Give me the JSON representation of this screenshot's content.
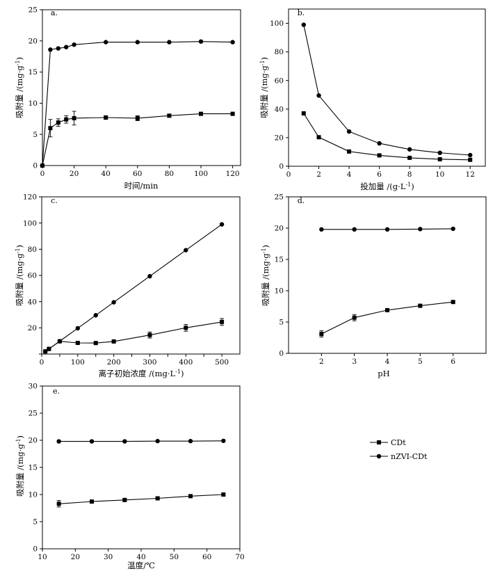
{
  "figure": {
    "series_names": [
      "CDt",
      "nZVI-CDt"
    ],
    "markers": [
      "square",
      "circle"
    ]
  },
  "legend": {
    "entries": [
      {
        "label": "CDt",
        "marker": "square"
      },
      {
        "label": "nZVI-CDt",
        "marker": "circle"
      }
    ]
  },
  "chart_data": [
    {
      "id": "a",
      "panel_label": "a.",
      "type": "line",
      "xlabel": "时间/min",
      "ylabel_main": "吸附量 /(mg·g",
      "ylabel_sup": "-1",
      "ylabel_tail": ")",
      "xlim": [
        0,
        125
      ],
      "ylim": [
        0,
        25
      ],
      "xticks": [
        0,
        20,
        40,
        60,
        80,
        100,
        120
      ],
      "yticks": [
        0,
        5,
        10,
        15,
        20,
        25
      ],
      "series": [
        {
          "name": "CDt",
          "marker": "square",
          "x": [
            0,
            5,
            10,
            15,
            20,
            40,
            60,
            80,
            100,
            120
          ],
          "y": [
            0,
            6.0,
            6.9,
            7.4,
            7.6,
            7.7,
            7.6,
            8.0,
            8.3,
            8.3
          ],
          "err": [
            0,
            1.4,
            0.6,
            0.6,
            1.1,
            0.3,
            0.4,
            0.2,
            0.2,
            0.2
          ]
        },
        {
          "name": "nZVI-CDt",
          "marker": "circle",
          "x": [
            0,
            5,
            10,
            15,
            20,
            40,
            60,
            80,
            100,
            120
          ],
          "y": [
            0,
            18.6,
            18.8,
            19.0,
            19.4,
            19.8,
            19.8,
            19.8,
            19.9,
            19.8
          ]
        }
      ]
    },
    {
      "id": "b",
      "panel_label": "b.",
      "type": "line",
      "xlabel": "投加量 /(g·L",
      "xlabel_sup": "-1",
      "xlabel_tail": ")",
      "ylabel_main": "吸附量 /(mg·g",
      "ylabel_sup": "-1",
      "ylabel_tail": ")",
      "xlim": [
        0,
        13
      ],
      "ylim": [
        0,
        110
      ],
      "xticks": [
        0,
        2,
        4,
        6,
        8,
        10,
        12
      ],
      "yticks": [
        0,
        20,
        40,
        60,
        80,
        100
      ],
      "series": [
        {
          "name": "CDt",
          "marker": "square",
          "x": [
            1,
            2,
            4,
            6,
            8,
            10,
            12
          ],
          "y": [
            37,
            20.3,
            10.3,
            7.6,
            5.9,
            4.9,
            4.5
          ]
        },
        {
          "name": "nZVI-CDt",
          "marker": "circle",
          "x": [
            1,
            2,
            4,
            6,
            8,
            10,
            12
          ],
          "y": [
            99,
            49.5,
            24.3,
            16.0,
            11.8,
            9.4,
            7.8
          ]
        }
      ]
    },
    {
      "id": "c",
      "panel_label": "c.",
      "type": "line",
      "xlabel": "离子初始浓度 /(mg·L",
      "xlabel_sup": "-1",
      "xlabel_tail": ")",
      "ylabel_main": "吸附量 /(mg·g",
      "ylabel_sup": "-1",
      "ylabel_tail": ")",
      "xlim": [
        0,
        550
      ],
      "ylim": [
        0,
        120
      ],
      "xticks": [
        0,
        50,
        100,
        150,
        200,
        250,
        300,
        350,
        400,
        450,
        500
      ],
      "xtick_labels": [
        "0",
        "",
        "100",
        "",
        "200",
        "",
        "300",
        "",
        "400",
        "",
        "500"
      ],
      "yticks": [
        0,
        20,
        40,
        60,
        80,
        100,
        120
      ],
      "ytick_labels": [
        "",
        "20",
        "40",
        "60",
        "80",
        "100",
        "120"
      ],
      "series": [
        {
          "name": "CDt",
          "marker": "square",
          "x": [
            10,
            20,
            50,
            100,
            150,
            200,
            300,
            400,
            500
          ],
          "y": [
            2.0,
            3.9,
            9.7,
            8.5,
            8.4,
            9.6,
            14.5,
            20.0,
            24.5
          ],
          "err": [
            0,
            0,
            0.4,
            0.6,
            0.6,
            0.5,
            2.3,
            2.6,
            2.6
          ]
        },
        {
          "name": "nZVI-CDt",
          "marker": "circle",
          "x": [
            10,
            20,
            50,
            100,
            150,
            200,
            300,
            400,
            500
          ],
          "y": [
            2.0,
            3.9,
            9.8,
            19.7,
            29.6,
            39.5,
            59.4,
            79.3,
            99.0
          ]
        }
      ]
    },
    {
      "id": "d",
      "panel_label": "d.",
      "type": "line",
      "xlabel": "pH",
      "ylabel_main": "吸附量 /(mg·g",
      "ylabel_sup": "-1",
      "ylabel_tail": ")",
      "xlim": [
        1,
        7
      ],
      "ylim": [
        0,
        25
      ],
      "xticks": [
        2,
        3,
        4,
        5,
        6
      ],
      "yticks": [
        0,
        5,
        10,
        15,
        20,
        25
      ],
      "series": [
        {
          "name": "CDt",
          "marker": "square",
          "x": [
            2,
            3,
            4,
            5,
            6
          ],
          "y": [
            3.1,
            5.7,
            6.9,
            7.6,
            8.2
          ],
          "err": [
            0.5,
            0.5,
            0.2,
            0.2,
            0.1
          ]
        },
        {
          "name": "nZVI-CDt",
          "marker": "circle",
          "x": [
            2,
            3,
            4,
            5,
            6
          ],
          "y": [
            19.8,
            19.8,
            19.8,
            19.85,
            19.9
          ]
        }
      ]
    },
    {
      "id": "e",
      "panel_label": "e.",
      "type": "line",
      "xlabel": "温度/℃",
      "ylabel_main": "吸附量 /(mg·g",
      "ylabel_sup": "-1",
      "ylabel_tail": ")",
      "xlim": [
        10,
        70
      ],
      "ylim": [
        0,
        30
      ],
      "xticks": [
        10,
        20,
        30,
        40,
        50,
        60,
        70
      ],
      "yticks": [
        0,
        5,
        10,
        15,
        20,
        25,
        30
      ],
      "series": [
        {
          "name": "CDt",
          "marker": "square",
          "x": [
            15,
            25,
            35,
            45,
            55,
            65
          ],
          "y": [
            8.3,
            8.7,
            9.0,
            9.3,
            9.7,
            10.0
          ],
          "err": [
            0.6,
            0.3,
            0.3,
            0.2,
            0.2,
            0.2
          ]
        },
        {
          "name": "nZVI-CDt",
          "marker": "circle",
          "x": [
            15,
            25,
            35,
            45,
            55,
            65
          ],
          "y": [
            19.8,
            19.8,
            19.8,
            19.85,
            19.85,
            19.9
          ]
        }
      ]
    }
  ]
}
